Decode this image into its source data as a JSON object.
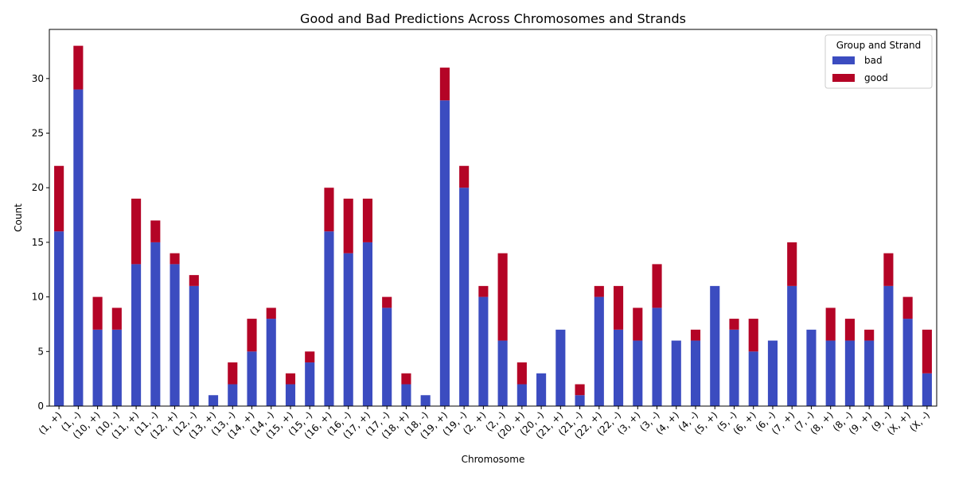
{
  "chart_data": {
    "type": "bar",
    "stacked": true,
    "title": "Good and Bad Predictions Across Chromosomes and Strands",
    "xlabel": "Chromosome",
    "ylabel": "Count",
    "ylim": [
      0,
      34.5
    ],
    "yticks": [
      0,
      5,
      10,
      15,
      20,
      25,
      30
    ],
    "grid": false,
    "legend": {
      "title": "Group and Strand",
      "placement": "top-right"
    },
    "categories": [
      "(1, +)",
      "(1, -)",
      "(10, +)",
      "(10, -)",
      "(11, +)",
      "(11, -)",
      "(12, +)",
      "(12, -)",
      "(13, +)",
      "(13, -)",
      "(14, +)",
      "(14, -)",
      "(15, +)",
      "(15, -)",
      "(16, +)",
      "(16, -)",
      "(17, +)",
      "(17, -)",
      "(18, +)",
      "(18, -)",
      "(19, +)",
      "(19, -)",
      "(2, +)",
      "(2, -)",
      "(20, +)",
      "(20, -)",
      "(21, +)",
      "(21, -)",
      "(22, +)",
      "(22, -)",
      "(3, +)",
      "(3, -)",
      "(4, +)",
      "(4, -)",
      "(5, +)",
      "(5, -)",
      "(6, +)",
      "(6, -)",
      "(7, +)",
      "(7, -)",
      "(8, +)",
      "(8, -)",
      "(9, +)",
      "(9, -)",
      "(X, +)",
      "(X, -)"
    ],
    "series": [
      {
        "name": "bad",
        "color": "#3b4cc0",
        "values": [
          16,
          29,
          7,
          7,
          13,
          15,
          13,
          11,
          1,
          2,
          5,
          8,
          2,
          4,
          16,
          14,
          15,
          9,
          2,
          1,
          28,
          20,
          10,
          6,
          2,
          3,
          7,
          1,
          10,
          7,
          6,
          9,
          6,
          6,
          11,
          7,
          5,
          6,
          11,
          7,
          6,
          6,
          6,
          11,
          8,
          3
        ]
      },
      {
        "name": "good",
        "color": "#b40426",
        "values": [
          6,
          4,
          3,
          2,
          6,
          2,
          1,
          1,
          0,
          2,
          3,
          1,
          1,
          1,
          4,
          5,
          4,
          1,
          1,
          0,
          3,
          2,
          1,
          8,
          2,
          0,
          0,
          1,
          1,
          4,
          3,
          4,
          0,
          1,
          0,
          1,
          3,
          0,
          4,
          0,
          3,
          2,
          1,
          3,
          2,
          4
        ]
      }
    ]
  }
}
